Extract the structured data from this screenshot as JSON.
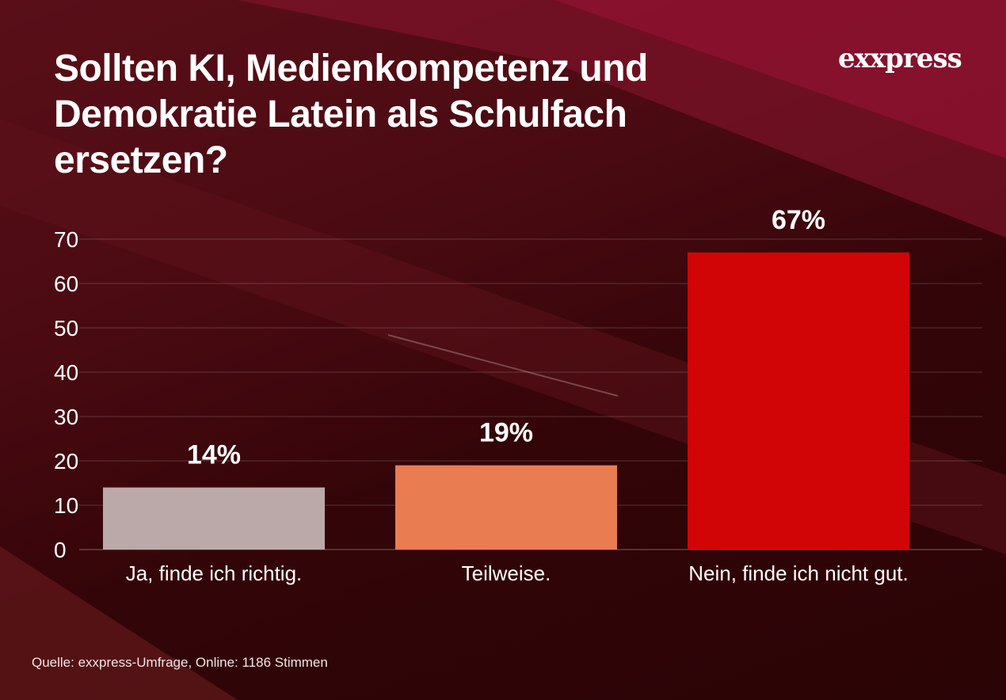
{
  "title": "Sollten KI, Medienkompetenz und Demokratie Latein als Schulfach ersetzen?",
  "logo": "exxpress",
  "source": "Quelle:  exxpress-Umfrage, Online: 1186 Stimmen",
  "chart_data": {
    "type": "bar",
    "title": "Sollten KI, Medienkompetenz und Demokratie Latein als Schulfach ersetzen?",
    "categories": [
      "Ja, finde ich richtig.",
      "Teilweise.",
      "Nein, finde ich nicht gut."
    ],
    "values": [
      14,
      19,
      67
    ],
    "data_labels": [
      "14%",
      "19%",
      "67%"
    ],
    "colors": [
      "#bba9aa",
      "#ea7c52",
      "#d10505"
    ],
    "yticks": [
      0,
      10,
      20,
      30,
      40,
      50,
      60,
      70
    ],
    "ylim": [
      0,
      70
    ],
    "grid": true,
    "xlabel": "",
    "ylabel": ""
  }
}
